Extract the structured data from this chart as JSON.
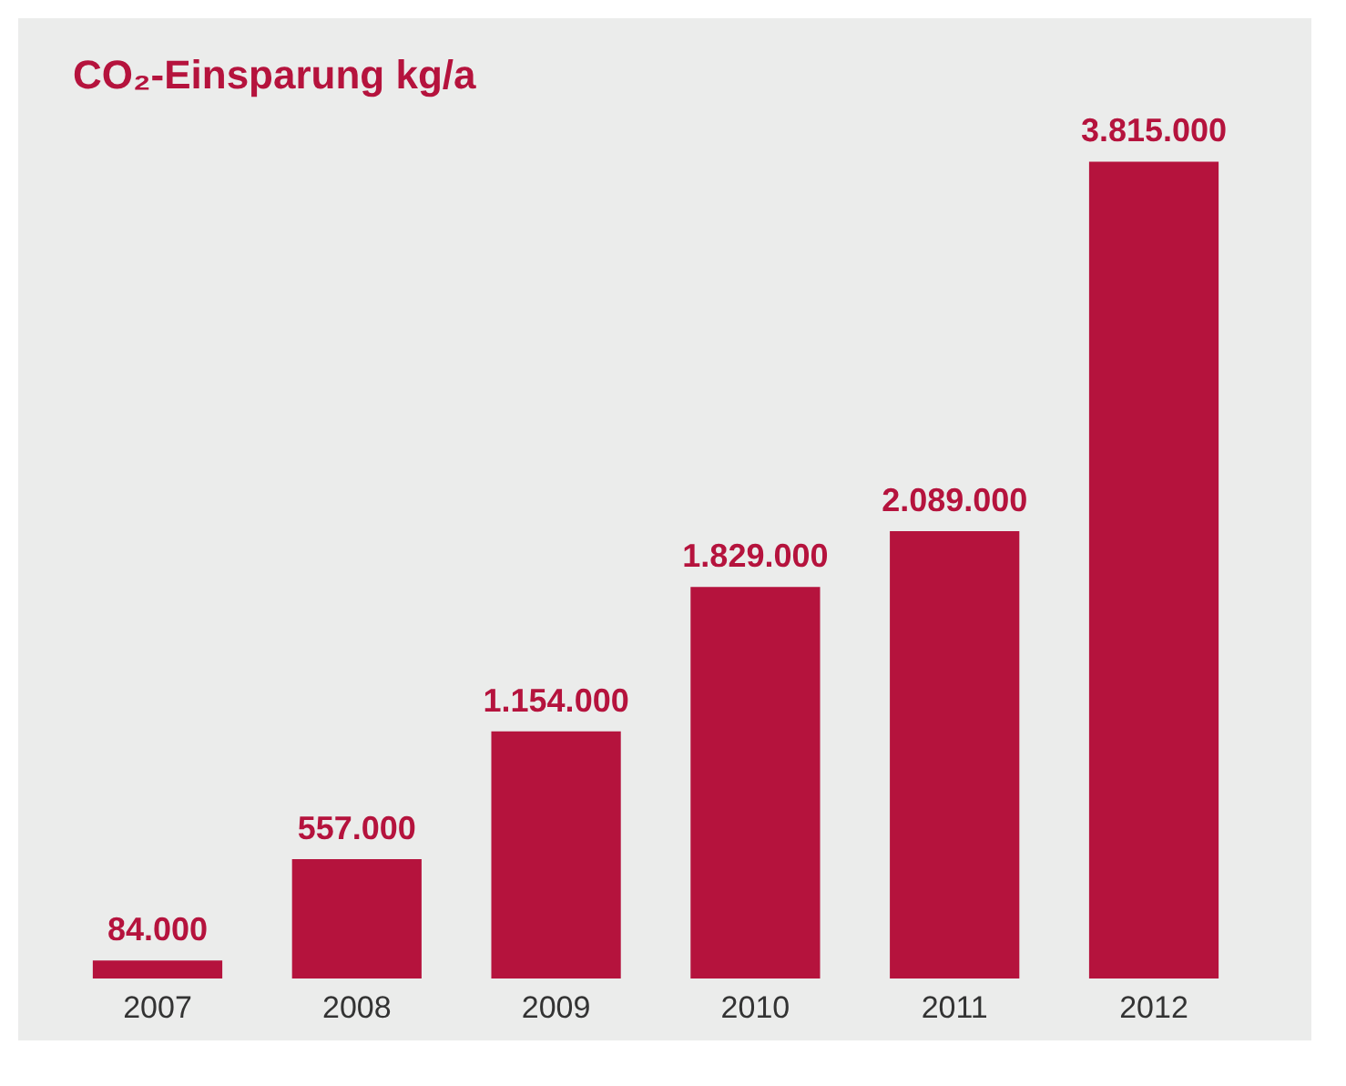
{
  "chart_data": {
    "type": "bar",
    "title": "CO₂-Einsparung kg/a",
    "categories": [
      "2007",
      "2008",
      "2009",
      "2010",
      "2011",
      "2012"
    ],
    "values": [
      84000,
      557000,
      1154000,
      1829000,
      2089000,
      3815000
    ],
    "value_labels": [
      "84.000",
      "557.000",
      "1.154.000",
      "1.829.000",
      "2.089.000",
      "3.815.000"
    ],
    "color": "#b5133d"
  }
}
